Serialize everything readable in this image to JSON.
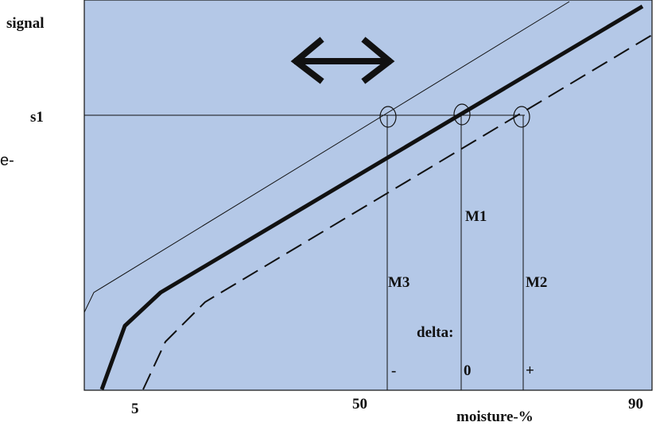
{
  "labels": {
    "y_axis": "signal",
    "s_level": "s1",
    "left_fragment": "e-",
    "x_axis": "moisture-%",
    "tick_5": "5",
    "tick_50": "50",
    "tick_90": "90",
    "m1": "M1",
    "m2": "M2",
    "m3": "M3",
    "delta": "delta:",
    "delta_minus": "-",
    "delta_zero": "0",
    "delta_plus": "+"
  },
  "colors": {
    "plot_background": "#b4c8e7",
    "ink": "#111111"
  },
  "icons": {
    "shift_arrow": "double-headed-horizontal-arrow"
  }
}
